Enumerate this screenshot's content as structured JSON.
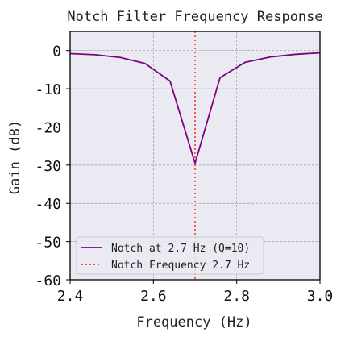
{
  "chart_data": {
    "type": "line",
    "title": "Notch Filter Frequency Response",
    "xlabel": "Frequency (Hz)",
    "ylabel": "Gain (dB)",
    "xlim": [
      2.4,
      3.0
    ],
    "ylim": [
      -60,
      5
    ],
    "xticks": [
      2.4,
      2.6,
      2.8,
      3.0
    ],
    "xtick_labels": [
      "2.4",
      "2.6",
      "2.8",
      "3.0"
    ],
    "yticks": [
      0,
      -10,
      -20,
      -30,
      -40,
      -50,
      -60
    ],
    "ytick_labels": [
      "0",
      "-10",
      "-20",
      "-30",
      "-40",
      "-50",
      "-60"
    ],
    "grid": true,
    "legend_position": "lower-left",
    "series": [
      {
        "name": "Notch at 2.7 Hz (Q=10)",
        "color": "#800080",
        "style": "solid",
        "x": [
          2.4,
          2.46,
          2.52,
          2.58,
          2.64,
          2.7,
          2.76,
          2.82,
          2.88,
          2.94,
          3.0
        ],
        "y": [
          -0.8,
          -1.1,
          -1.8,
          -3.4,
          -8.0,
          -29.5,
          -7.1,
          -3.1,
          -1.7,
          -1.0,
          -0.6
        ]
      }
    ],
    "reference_lines": [
      {
        "name": "Notch Frequency 2.7 Hz",
        "orientation": "vertical",
        "x": 2.7,
        "color": "#ff3333",
        "style": "dotted"
      }
    ]
  }
}
